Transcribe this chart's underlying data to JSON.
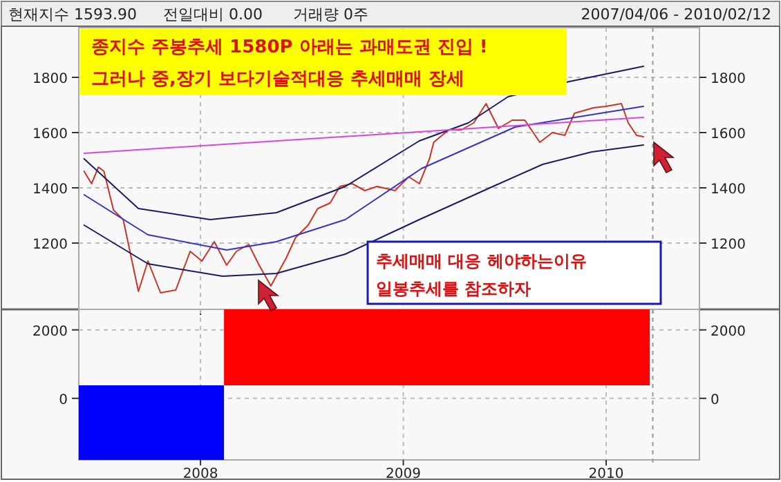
{
  "chart_data": [
    {
      "type": "line",
      "xlim": [
        2007.4,
        2010.46
      ],
      "xticks": [
        {
          "value": 2008,
          "label": null
        },
        {
          "value": 2009,
          "label": null
        },
        {
          "value": 2010,
          "label": null
        }
      ],
      "ylim": [
        960,
        1980
      ],
      "yticks": [
        1200,
        1400,
        1600,
        1800
      ],
      "y2lim": [
        960,
        1980
      ],
      "y2ticks": [
        1200,
        1400,
        1600,
        1800
      ],
      "tick_labels": "y",
      "grid": true,
      "line_style": "solid",
      "annotations": [
        "현재지수 1593.90",
        "전일대비 0.00",
        "거래량 0주",
        "2007/04/06 - 2010/02/12",
        "종지수 주봉추세 1580P 아래는  과매도권 진입 !",
        "그러나 중,장기 보다기술적대응  추세매매 장세",
        "추세매매 대응 헤야하는이유",
        "일봉추세를 참조하자"
      ],
      "ref_lines": [
        {
          "axis": "x",
          "value": 2010.23,
          "color": "#999999",
          "line_style": "dashed"
        }
      ],
      "series": [
        {
          "color": "#cc3322",
          "x": [
            2007.426,
            2007.463,
            2007.497,
            2007.524,
            2007.571,
            2007.619,
            2007.694,
            2007.741,
            2007.803,
            2007.878,
            2007.949,
            2008.007,
            2008.068,
            2008.129,
            2008.177,
            2008.238,
            2008.289,
            2008.347,
            2008.422,
            2008.469,
            2008.531,
            2008.578,
            2008.639,
            2008.687,
            2008.748,
            2008.81,
            2008.871,
            2008.959,
            2009.027,
            2009.079,
            2009.129,
            2009.15,
            2009.224,
            2009.286,
            2009.347,
            2009.408,
            2009.469,
            2009.537,
            2009.599,
            2009.673,
            2009.735,
            2009.796,
            2009.844,
            2009.939,
            2010.0,
            2010.075,
            2010.109,
            2010.15,
            2010.184
          ],
          "values": [
            1460,
            1415,
            1475,
            1460,
            1320,
            1285,
            1025,
            1135,
            1020,
            1030,
            1170,
            1135,
            1205,
            1120,
            1170,
            1195,
            1120,
            1045,
            1145,
            1220,
            1265,
            1325,
            1345,
            1405,
            1415,
            1390,
            1405,
            1390,
            1440,
            1415,
            1505,
            1565,
            1610,
            1610,
            1635,
            1705,
            1615,
            1645,
            1645,
            1565,
            1600,
            1590,
            1670,
            1690,
            1695,
            1705,
            1635,
            1590,
            1585
          ]
        },
        {
          "color": "#1a1a66",
          "x": [
            2007.426,
            2007.694,
            2008.048,
            2008.374,
            2008.714,
            2009.079,
            2009.32,
            2009.517,
            2009.82,
            2010.184
          ],
          "values": [
            1505,
            1325,
            1285,
            1310,
            1405,
            1570,
            1635,
            1730,
            1785,
            1840
          ]
        },
        {
          "color": "#3333cc",
          "x": [
            2007.426,
            2007.741,
            2008.129,
            2008.374,
            2008.714,
            2009.09,
            2009.551,
            2010.184
          ],
          "values": [
            1375,
            1230,
            1175,
            1205,
            1285,
            1470,
            1620,
            1695
          ]
        },
        {
          "color": "#1a1a66",
          "x": [
            2007.426,
            2007.741,
            2008.109,
            2008.374,
            2008.714,
            2009.079,
            2009.442,
            2009.687,
            2009.929,
            2010.184
          ],
          "values": [
            1265,
            1125,
            1080,
            1090,
            1160,
            1285,
            1405,
            1485,
            1530,
            1555
          ]
        },
        {
          "color": "#dd44dd",
          "x": [
            2007.426,
            2010.184
          ],
          "values": [
            1525,
            1655
          ]
        }
      ]
    },
    {
      "type": "histogram",
      "xlim": [
        2007.4,
        2010.46
      ],
      "xticks": [
        {
          "value": 2008,
          "label": "2008"
        },
        {
          "value": 2009,
          "label": "2009"
        },
        {
          "value": 2010,
          "label": "2010"
        }
      ],
      "ylim": [
        -1800,
        2600
      ],
      "yticks": [
        0,
        2000
      ],
      "y2lim": [
        -1800,
        2600
      ],
      "y2ticks": [
        0,
        2000
      ],
      "grid": true,
      "ref_lines": [
        {
          "axis": "x",
          "value": 2010.23,
          "color": "#999999",
          "line_style": "dashed"
        }
      ],
      "bins": [
        2007.4,
        2008.116,
        2010.215
      ],
      "base": [
        380,
        380
      ],
      "values": [
        -2180,
        2220
      ],
      "colors": [
        "#0000ff",
        "#ff0000"
      ]
    }
  ]
}
